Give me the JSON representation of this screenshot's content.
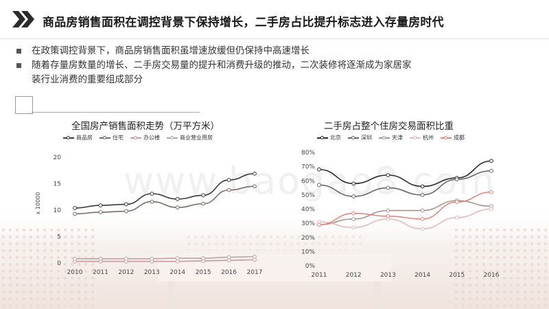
{
  "header": {
    "title": "商品房销售面积在调控背景下保持增长，二手房占比提升标志进入存量房时代"
  },
  "bullets": [
    "在政策调控背景下，商品房销售面积虽增速放缓但仍保持中高速增长",
    "随着存量房数量的增长、二手房交易量的提升和消费升级的推动，二次装修将逐渐成为家居家",
    "装行业消费的重要组成部分"
  ],
  "watermark": "www.baogao8.com",
  "colors": {
    "s1": "#3a3a3a",
    "s2": "#7a6a68",
    "s3": "#c79aa0",
    "s4": "#b8a5a5",
    "r1": "#2a2a2a",
    "r2": "#6e6462",
    "r3": "#a8948e",
    "r4": "#e6b9bb",
    "r5": "#e0867f"
  },
  "chart_data": [
    {
      "type": "line",
      "title": "全国房产销售面积走势（万平方米）",
      "ylabel": "x 10000",
      "x": [
        "2010",
        "2011",
        "2012",
        "2013",
        "2014",
        "2015",
        "2016",
        "2017"
      ],
      "ylim": [
        0,
        20
      ],
      "yticks": [
        "0",
        "5",
        "10",
        "15",
        "20"
      ],
      "legend_position": "top",
      "series": [
        {
          "name": "商品房",
          "values": [
            10.4,
            10.9,
            11.1,
            13.1,
            12.1,
            12.8,
            15.7,
            16.9
          ]
        },
        {
          "name": "住宅",
          "values": [
            9.3,
            9.6,
            9.8,
            11.6,
            10.5,
            11.2,
            13.8,
            14.5
          ]
        },
        {
          "name": "办公楼",
          "values": [
            0.3,
            0.3,
            0.3,
            0.3,
            0.3,
            0.4,
            0.5,
            0.6
          ]
        },
        {
          "name": "商业营业用房",
          "values": [
            0.8,
            0.8,
            0.8,
            0.8,
            0.9,
            0.9,
            1.1,
            1.2
          ]
        }
      ]
    },
    {
      "type": "line",
      "title": "二手房占整个住房交易面积比重",
      "x": [
        "2011",
        "2012",
        "2013",
        "2014",
        "2015",
        "2016"
      ],
      "ylim": [
        0,
        80
      ],
      "yticks": [
        "0%",
        "10%",
        "20%",
        "30%",
        "40%",
        "50%",
        "60%",
        "70%",
        "80%"
      ],
      "legend_position": "top",
      "series": [
        {
          "name": "北京",
          "values": [
            68,
            58,
            64,
            56,
            62,
            74
          ]
        },
        {
          "name": "深圳",
          "values": [
            57,
            49,
            55,
            50,
            61,
            67
          ]
        },
        {
          "name": "天津",
          "values": [
            29,
            33,
            39,
            39,
            46,
            42
          ]
        },
        {
          "name": "杭州",
          "values": [
            31,
            27,
            33,
            26,
            34,
            40
          ]
        },
        {
          "name": "成都",
          "values": [
            29,
            37,
            35,
            33,
            45,
            52
          ]
        }
      ]
    }
  ]
}
